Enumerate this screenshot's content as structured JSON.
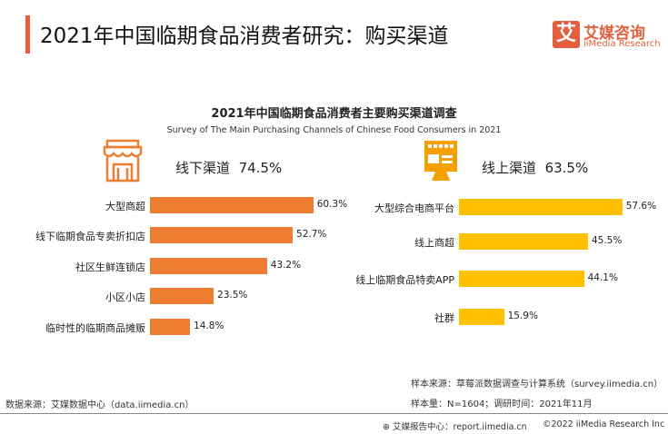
{
  "header": {
    "title": "2021年中国临期食品消费者研究：购买渠道",
    "logo_mark": "艾",
    "logo_cn": "艾媒咨询",
    "logo_en": "iiMedia Research"
  },
  "chart_data": [
    {
      "type": "bar",
      "orientation": "horizontal",
      "title": "2021年中国临期食品消费者主要购买渠道调查",
      "subtitle": "Survey of The Main Purchasing Channels of Chinese Food Consumers in 2021",
      "group_label": "线下渠道",
      "group_total": "74.5%",
      "color": "#ED7D31",
      "icon": "storefront-icon",
      "categories": [
        "大型商超",
        "线下临期食品专卖折扣店",
        "社区生鲜连锁店",
        "小区小店",
        "临时性的临期商品摊贩"
      ],
      "values": [
        60.3,
        52.7,
        43.2,
        23.5,
        14.8
      ],
      "labels": [
        "60.3%",
        "52.7%",
        "43.2%",
        "23.5%",
        "14.8%"
      ]
    },
    {
      "type": "bar",
      "orientation": "horizontal",
      "group_label": "线上渠道",
      "group_total": "63.5%",
      "color": "#FFC000",
      "icon": "online-shop-monitor-icon",
      "categories": [
        "大型综合电商平台",
        "线上商超",
        "线上临期食品特卖APP",
        "社群"
      ],
      "values": [
        57.6,
        45.5,
        44.1,
        15.9
      ],
      "labels": [
        "57.6%",
        "45.5%",
        "44.1%",
        "15.9%"
      ]
    }
  ],
  "footer": {
    "sample_source": "样本来源：草莓派数据调查与计算系统（survey.iimedia.cn）",
    "sample_size": "样本量：N=1604；调研时间：2021年11月",
    "data_source": "数据来源：艾媒数据中心（data.iimedia.cn）",
    "report_center": "艾媒报告中心：report.iimedia.cn",
    "copyright": "©2022  iiMedia Research  Inc"
  }
}
